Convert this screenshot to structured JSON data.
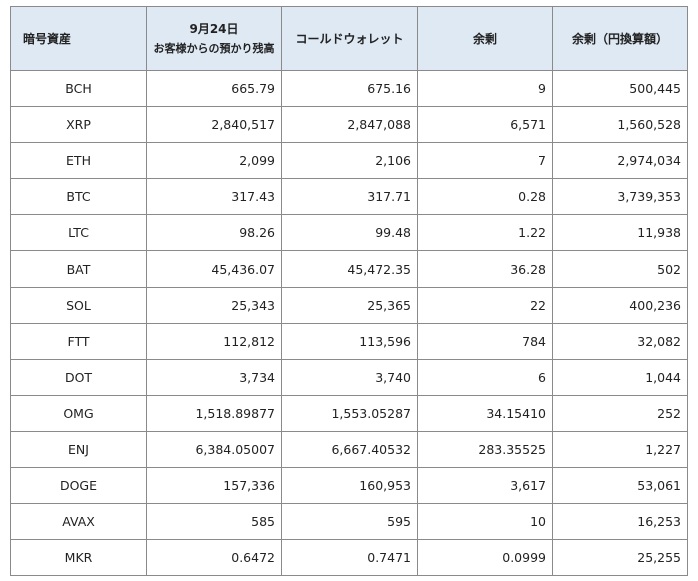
{
  "table": {
    "headers": {
      "asset": "暗号資産",
      "customer_date": "9月24日",
      "customer_label": "お客様からの預かり残高",
      "cold_wallet": "コールドウォレット",
      "surplus": "余剰",
      "surplus_jpy": "余剰（円換算額）"
    },
    "rows": [
      {
        "asset": "BCH",
        "customer": "665.79",
        "cold": "675.16",
        "surplus": "9",
        "surplus_jpy": "500,445"
      },
      {
        "asset": "XRP",
        "customer": "2,840,517",
        "cold": "2,847,088",
        "surplus": "6,571",
        "surplus_jpy": "1,560,528"
      },
      {
        "asset": "ETH",
        "customer": "2,099",
        "cold": "2,106",
        "surplus": "7",
        "surplus_jpy": "2,974,034"
      },
      {
        "asset": "BTC",
        "customer": "317.43",
        "cold": "317.71",
        "surplus": "0.28",
        "surplus_jpy": "3,739,353"
      },
      {
        "asset": "LTC",
        "customer": "98.26",
        "cold": "99.48",
        "surplus": "1.22",
        "surplus_jpy": "11,938"
      },
      {
        "asset": "BAT",
        "customer": "45,436.07",
        "cold": "45,472.35",
        "surplus": "36.28",
        "surplus_jpy": "502"
      },
      {
        "asset": "SOL",
        "customer": "25,343",
        "cold": "25,365",
        "surplus": "22",
        "surplus_jpy": "400,236"
      },
      {
        "asset": "FTT",
        "customer": "112,812",
        "cold": "113,596",
        "surplus": "784",
        "surplus_jpy": "32,082"
      },
      {
        "asset": "DOT",
        "customer": "3,734",
        "cold": "3,740",
        "surplus": "6",
        "surplus_jpy": "1,044"
      },
      {
        "asset": "OMG",
        "customer": "1,518.89877",
        "cold": "1,553.05287",
        "surplus": "34.15410",
        "surplus_jpy": "252"
      },
      {
        "asset": "ENJ",
        "customer": "6,384.05007",
        "cold": "6,667.40532",
        "surplus": "283.35525",
        "surplus_jpy": "1,227"
      },
      {
        "asset": "DOGE",
        "customer": "157,336",
        "cold": "160,953",
        "surplus": "3,617",
        "surplus_jpy": "53,061"
      },
      {
        "asset": "AVAX",
        "customer": "585",
        "cold": "595",
        "surplus": "10",
        "surplus_jpy": "16,253"
      },
      {
        "asset": "MKR",
        "customer": "0.6472",
        "cold": "0.7471",
        "surplus": "0.0999",
        "surplus_jpy": "25,255"
      }
    ]
  },
  "colors": {
    "header_bg": "#dfe9f4",
    "border": "#8a8a8a",
    "text": "#222222"
  }
}
